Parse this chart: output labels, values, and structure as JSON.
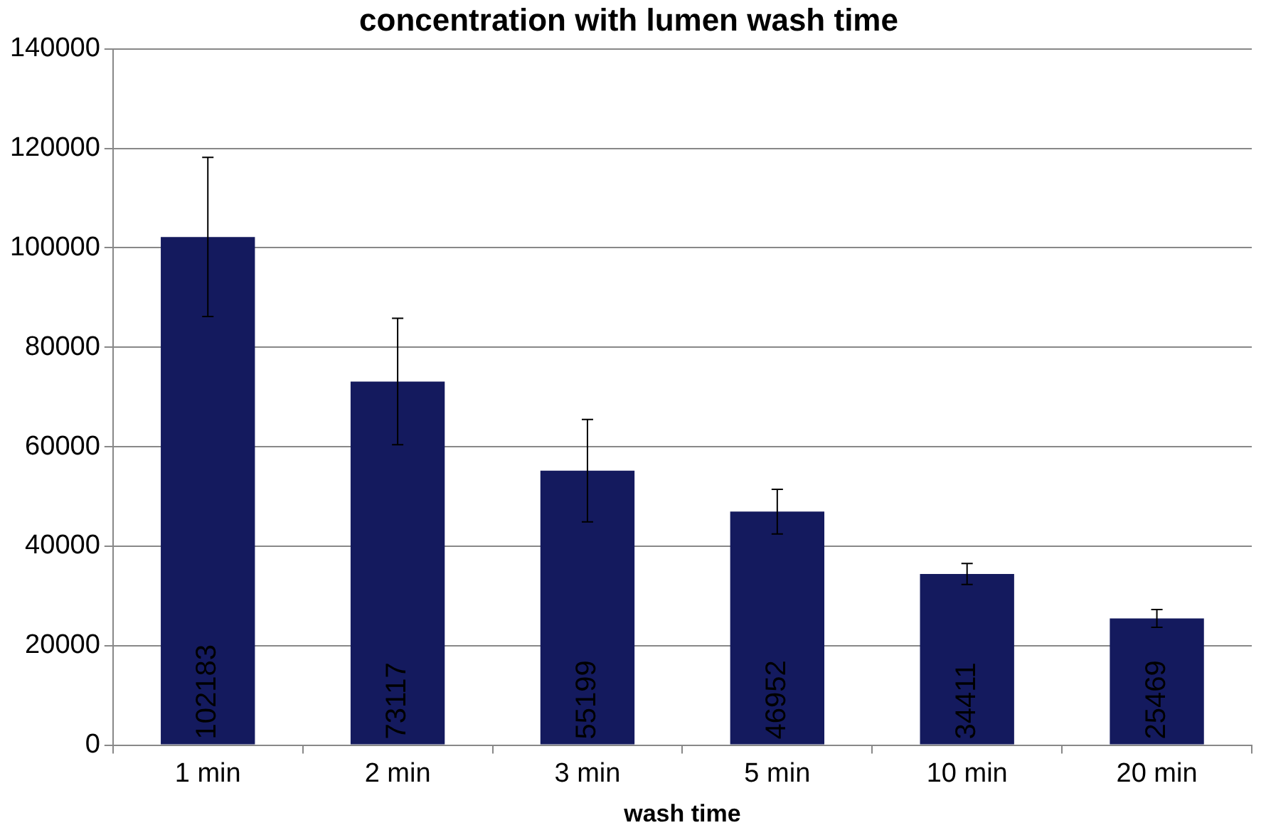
{
  "chart_data": {
    "type": "bar",
    "title": "concentration with lumen wash time",
    "xlabel": "wash time",
    "categories": [
      "1 min",
      "2 min",
      "3 min",
      "5 min",
      "10 min",
      "20 min"
    ],
    "values": [
      102183,
      73117,
      55199,
      46952,
      34411,
      25469
    ],
    "errors": [
      16000,
      12700,
      10300,
      4500,
      2100,
      1800
    ],
    "color": "#141a5e",
    "ylim": [
      0,
      140000
    ],
    "yticks": [
      0,
      20000,
      40000,
      60000,
      80000,
      100000,
      120000,
      140000
    ],
    "grid": "y",
    "data_labels": true,
    "legend": false
  }
}
